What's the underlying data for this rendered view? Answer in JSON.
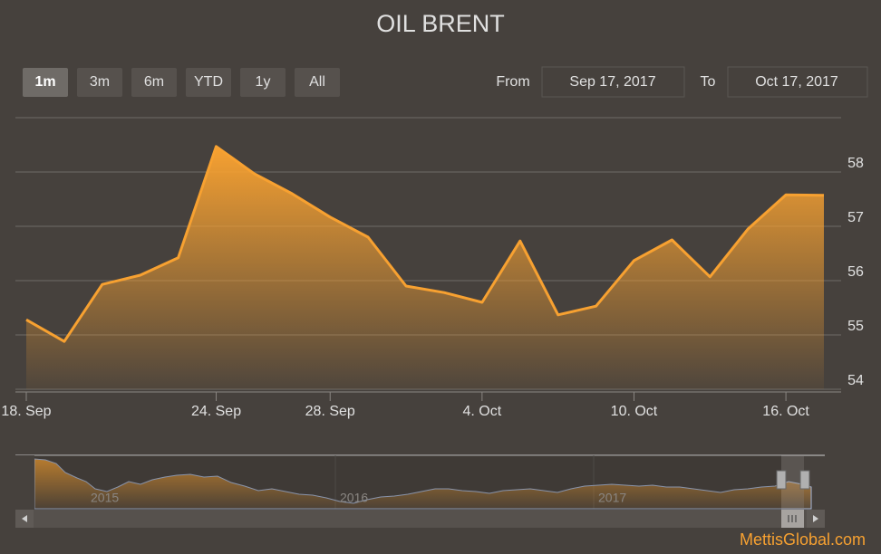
{
  "chart_data": {
    "type": "area",
    "title": "OIL BRENT",
    "categories": [
      "18. Sep",
      null,
      null,
      null,
      null,
      "24. Sep",
      null,
      null,
      "28. Sep",
      null,
      null,
      null,
      "4. Oct",
      null,
      null,
      null,
      "10. Oct",
      null,
      null,
      null,
      "16. Oct",
      null
    ],
    "series": [
      {
        "name": "Oil Brent",
        "color": "#f7a131",
        "values": [
          55.28,
          54.88,
          55.93,
          56.1,
          56.42,
          58.47,
          57.97,
          57.6,
          57.17,
          56.8,
          55.9,
          55.78,
          55.6,
          56.73,
          55.37,
          55.53,
          56.37,
          56.75,
          56.07,
          56.95,
          57.58,
          57.57
        ]
      }
    ],
    "ylim": [
      54,
      59
    ],
    "yticks": [
      54,
      55,
      56,
      57,
      58
    ],
    "grid": true
  },
  "range_selector": {
    "buttons": [
      "1m",
      "3m",
      "6m",
      "YTD",
      "1y",
      "All"
    ],
    "selected": 0,
    "from_label": "From",
    "from_date": "Sep 17, 2017",
    "to_label": "To",
    "to_date": "Oct 17, 2017"
  },
  "navigator": {
    "labels": [
      "2015",
      "2016",
      "2017"
    ]
  },
  "watermark": "MettisGlobal.com"
}
